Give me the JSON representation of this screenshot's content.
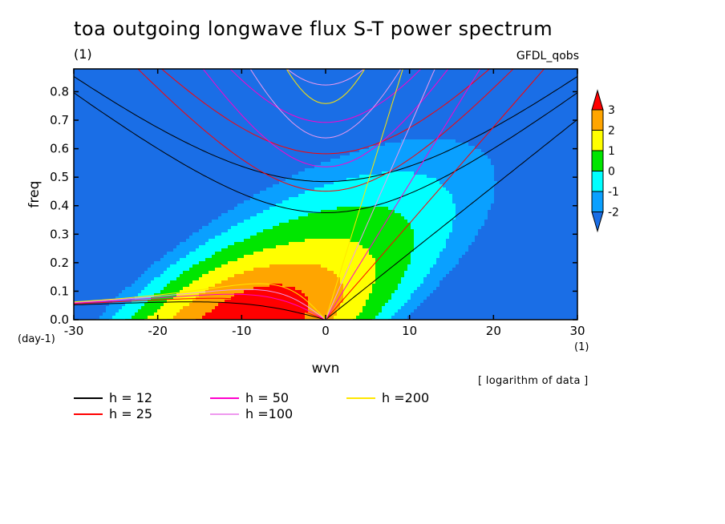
{
  "title": "toa outgoing longwave flux S-T power spectrum",
  "subtitle": "(1)",
  "run_name": "GFDL_qobs",
  "note": "[ logarithm of data ]",
  "x_unit_label": "(1)",
  "y_unit_label": "(day-1)",
  "chart_data": {
    "type": "contour",
    "xlabel": "wvn",
    "ylabel": "freq",
    "xlim": [
      -30,
      30
    ],
    "ylim": [
      0,
      0.88
    ],
    "x_ticks": [
      "-30",
      "-20",
      "-10",
      "0",
      "10",
      "20",
      "30"
    ],
    "y_ticks": [
      "0.0",
      "0.1",
      "0.2",
      "0.3",
      "0.4",
      "0.5",
      "0.6",
      "0.7",
      "0.8"
    ],
    "colorbar": {
      "ticks": [
        "3",
        "2",
        "1",
        "0",
        "-1",
        "-2"
      ],
      "levels": [
        -2,
        -1,
        0,
        1,
        2,
        3
      ],
      "colors": [
        "#1a6ee6",
        "#0aa0ff",
        "#00ffff",
        "#00e600",
        "#ffff00",
        "#ffa500",
        "#ff0000"
      ]
    },
    "dispersion_curves": [
      {
        "name": "h = 12",
        "equivalent_depth": 12,
        "color": "#000000"
      },
      {
        "name": "h = 25",
        "equivalent_depth": 25,
        "color": "#ff0000"
      },
      {
        "name": "h = 50",
        "equivalent_depth": 50,
        "color": "#ff00cc"
      },
      {
        "name": "h =100",
        "equivalent_depth": 100,
        "color": "#ee99ee"
      },
      {
        "name": "h =200",
        "equivalent_depth": 200,
        "color": "#ffe600"
      }
    ]
  }
}
